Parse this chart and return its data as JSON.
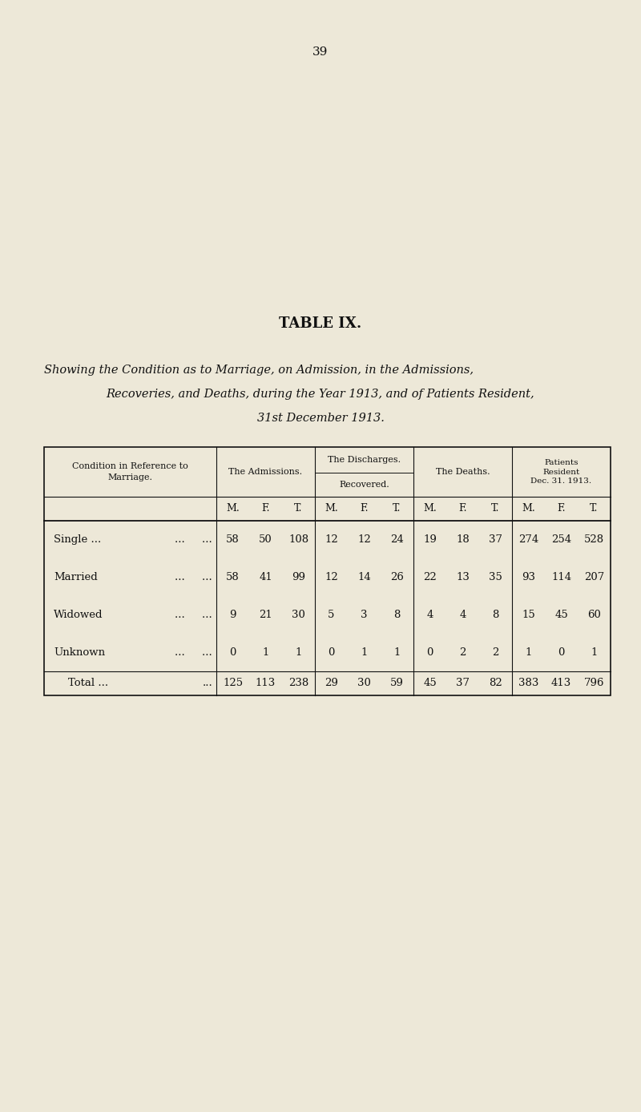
{
  "page_number": "39",
  "title": "TABLE IX.",
  "subtitle_lines": [
    "Showing the Condition as to Marriage, on Admission, in the Admissions,",
    "Recoveries, and Deaths, during the Year 1913, and of Patients Resident,",
    "31st December 1913."
  ],
  "bg_color": "#ede8d8",
  "text_color": "#111111",
  "row_header": "Condition in Reference to\nMarriage.",
  "col_group_labels": [
    "The Admissions.",
    "The Discharges.",
    "The Deaths.",
    "Patients\nResident\nDec. 31. 1913."
  ],
  "discharge_sub": "Recovered.",
  "mft_cols": [
    "M.",
    "F.",
    "T."
  ],
  "data_rows": [
    {
      "label": "Single ...",
      "dots": "...     ...",
      "vals": [
        58,
        50,
        108,
        12,
        12,
        24,
        19,
        18,
        37,
        274,
        254,
        528
      ]
    },
    {
      "label": "Married",
      "dots": "...     ...",
      "vals": [
        58,
        41,
        99,
        12,
        14,
        26,
        22,
        13,
        35,
        93,
        114,
        207
      ]
    },
    {
      "label": "Widowed",
      "dots": "...     ...",
      "vals": [
        9,
        21,
        30,
        5,
        3,
        8,
        4,
        4,
        8,
        15,
        45,
        60
      ]
    },
    {
      "label": "Unknown",
      "dots": "...     ...",
      "vals": [
        0,
        1,
        1,
        0,
        1,
        1,
        0,
        2,
        2,
        1,
        0,
        1
      ]
    }
  ],
  "total_row": {
    "label": "Total ...",
    "dots": "...",
    "vals": [
      125,
      113,
      238,
      29,
      30,
      59,
      45,
      37,
      82,
      383,
      413,
      796
    ]
  },
  "fig_w": 8.0,
  "fig_h": 13.88,
  "dpi": 100
}
